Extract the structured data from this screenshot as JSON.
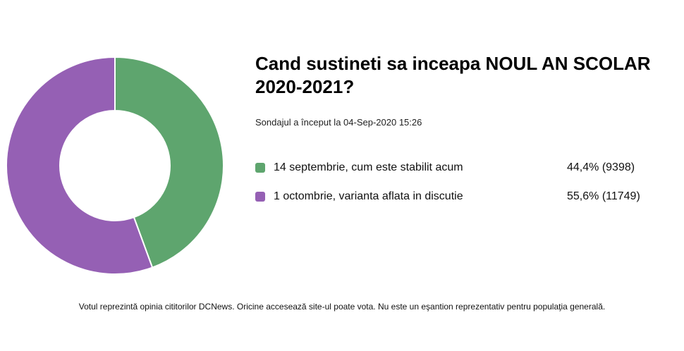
{
  "chart_data": {
    "type": "pie",
    "title": "Cand sustineti sa inceapa NOUL AN SCOLAR 2020-2021?",
    "subtitle": "Sondajul a început la 04-Sep-2020 15:26",
    "slices": [
      {
        "label": "14 septembrie, cum este stabilit acum",
        "percent": 44.4,
        "votes": 9398,
        "value_text": "44,4% (9398)",
        "color": "#5ea56e"
      },
      {
        "label": "1 octombrie, varianta aflata in discutie",
        "percent": 55.6,
        "votes": 11749,
        "value_text": "55,6% (11749)",
        "color": "#9560b4"
      }
    ],
    "donut": true,
    "legend_position": "right"
  },
  "footnote": "Votul reprezintă opinia cititorilor DCNews. Oricine accesează site-ul poate vota. Nu este un eşantion reprezentativ pentru populaţia generală."
}
